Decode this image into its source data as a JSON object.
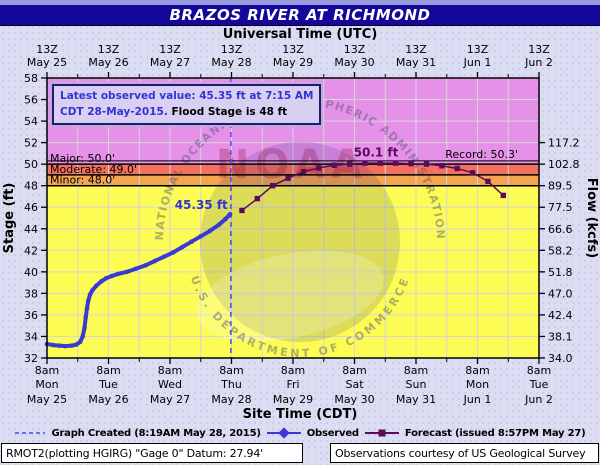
{
  "chart_data": {
    "type": "line",
    "title": "BRAZOS RIVER AT RICHMOND",
    "top_axis": {
      "label": "Universal Time (UTC)",
      "tick_time": "13Z",
      "dates": [
        "May 25",
        "May 26",
        "May 27",
        "May 28",
        "May 29",
        "May 30",
        "May 31",
        "Jun 1",
        "Jun 2"
      ]
    },
    "bottom_axis": {
      "label": "Site Time (CDT)",
      "tick_time": "8am",
      "days": [
        "Mon",
        "Tue",
        "Wed",
        "Thu",
        "Fri",
        "Sat",
        "Sun",
        "Mon",
        "Tue"
      ],
      "dates": [
        "May 25",
        "May 26",
        "May 27",
        "May 28",
        "May 29",
        "May 30",
        "May 31",
        "Jun 1",
        "Jun 2"
      ]
    },
    "left_axis": {
      "label": "Stage (ft)",
      "range": [
        32,
        58
      ],
      "ticks": [
        58,
        56,
        54,
        52,
        50,
        48,
        46,
        44,
        42,
        40,
        38,
        36,
        34,
        32
      ]
    },
    "right_axis": {
      "label": "Flow (kcfs)",
      "ticks": [
        {
          "stage": 52,
          "flow": "117.2"
        },
        {
          "stage": 50,
          "flow": "102.8"
        },
        {
          "stage": 48,
          "flow": "89.5"
        },
        {
          "stage": 46,
          "flow": "77.5"
        },
        {
          "stage": 44,
          "flow": "66.6"
        },
        {
          "stage": 42,
          "flow": "58.2"
        },
        {
          "stage": 40,
          "flow": "51.8"
        },
        {
          "stage": 38,
          "flow": "47.0"
        },
        {
          "stage": 36,
          "flow": "42.4"
        },
        {
          "stage": 34,
          "flow": "38.1"
        },
        {
          "stage": 32,
          "flow": "34.0"
        }
      ]
    },
    "x_range_days": [
      0,
      8
    ],
    "flood_zones": {
      "minor": {
        "label": "Minor: 48.0'",
        "stage": 48.0,
        "color": "#f2a64f"
      },
      "moderate": {
        "label": "Moderate: 49.0'",
        "stage": 49.0,
        "color": "#f4715f"
      },
      "major": {
        "label": "Major: 50.0'",
        "stage": 50.0,
        "color": "#e591e8"
      },
      "record": {
        "label": "Record: 50.3'",
        "stage": 50.3
      },
      "below_color": "#fcfc54"
    },
    "series": [
      {
        "name": "Observed",
        "color": "#3939d4",
        "marker": "diamond",
        "points": [
          [
            0.0,
            33.3
          ],
          [
            0.1,
            33.2
          ],
          [
            0.2,
            33.15
          ],
          [
            0.3,
            33.1
          ],
          [
            0.4,
            33.15
          ],
          [
            0.48,
            33.25
          ],
          [
            0.54,
            33.5
          ],
          [
            0.58,
            34.0
          ],
          [
            0.61,
            34.8
          ],
          [
            0.63,
            35.8
          ],
          [
            0.65,
            36.6
          ],
          [
            0.67,
            37.3
          ],
          [
            0.7,
            37.9
          ],
          [
            0.74,
            38.3
          ],
          [
            0.8,
            38.7
          ],
          [
            0.88,
            39.1
          ],
          [
            0.96,
            39.4
          ],
          [
            1.05,
            39.6
          ],
          [
            1.15,
            39.8
          ],
          [
            1.3,
            40.0
          ],
          [
            1.45,
            40.3
          ],
          [
            1.6,
            40.6
          ],
          [
            1.75,
            41.0
          ],
          [
            1.9,
            41.4
          ],
          [
            2.05,
            41.8
          ],
          [
            2.2,
            42.3
          ],
          [
            2.35,
            42.8
          ],
          [
            2.5,
            43.3
          ],
          [
            2.65,
            43.8
          ],
          [
            2.8,
            44.4
          ],
          [
            2.9,
            44.9
          ],
          [
            2.976,
            45.35
          ]
        ]
      },
      {
        "name": "Forecast",
        "color": "#5a0b5a",
        "marker": "square",
        "points": [
          [
            3.17,
            45.7
          ],
          [
            3.42,
            46.8
          ],
          [
            3.67,
            48.0
          ],
          [
            3.92,
            48.7
          ],
          [
            4.17,
            49.3
          ],
          [
            4.42,
            49.65
          ],
          [
            4.67,
            49.9
          ],
          [
            4.92,
            50.0
          ],
          [
            5.17,
            50.1
          ],
          [
            5.42,
            50.1
          ],
          [
            5.67,
            50.1
          ],
          [
            5.92,
            50.05
          ],
          [
            6.17,
            50.0
          ],
          [
            6.42,
            49.85
          ],
          [
            6.67,
            49.6
          ],
          [
            6.92,
            49.2
          ],
          [
            7.17,
            48.4
          ],
          [
            7.42,
            47.1
          ]
        ]
      }
    ],
    "created_line": {
      "day": 2.99,
      "color": "#4a4ae8"
    },
    "point_labels": [
      {
        "text": "45.35 ft",
        "day": 2.94,
        "stage": 45.85,
        "color": "#3434d0",
        "anchor": "end"
      },
      {
        "text": "50.1 ft",
        "day": 5.35,
        "stage": 50.7,
        "color": "#5a0b5a",
        "anchor": "middle"
      }
    ],
    "annotation_box": {
      "line1": "Latest observed value: 45.35 ft at 7:15 AM",
      "line2_blue": "CDT 28-May-2015.",
      "line2_black": "Flood Stage is 48 ft"
    }
  },
  "legend": {
    "created": "Graph Created (8:19AM May 28, 2015)",
    "observed": "Observed",
    "forecast": "Forecast (issued 8:57PM May 27)"
  },
  "footer": {
    "station": "RMOT2(plotting HGIRG) \"Gage 0\" Datum: 27.94'",
    "courtesy": "Observations courtesy of US Geological Survey"
  },
  "watermark": {
    "logo_text": "NOAA",
    "org_top": "NATIONAL OCEANIC AND ATMOSPHERIC ADMINISTRATION",
    "org_bottom": "U.S. DEPARTMENT OF COMMERCE"
  }
}
